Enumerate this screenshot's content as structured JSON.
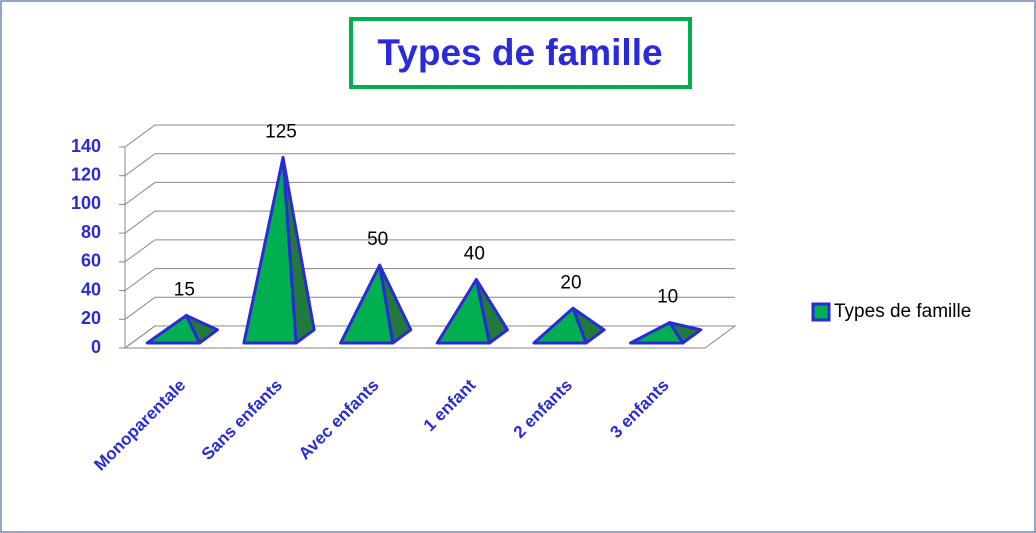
{
  "chart_data": {
    "type": "pyramid",
    "title": "Types de famille",
    "categories": [
      "Monoparentale",
      "Sans enfants",
      "Avec enfants",
      "1 enfant",
      "2 enfants",
      "3 enfants"
    ],
    "series": [
      {
        "name": "Types de famille",
        "color": "#00b050",
        "edge": "#2a2ad8",
        "values": [
          15,
          125,
          50,
          40,
          20,
          10
        ]
      }
    ],
    "ylim": [
      0,
      140
    ],
    "yticks": [
      0,
      20,
      40,
      60,
      80,
      100,
      120,
      140
    ],
    "grid": true,
    "legend": "right"
  }
}
